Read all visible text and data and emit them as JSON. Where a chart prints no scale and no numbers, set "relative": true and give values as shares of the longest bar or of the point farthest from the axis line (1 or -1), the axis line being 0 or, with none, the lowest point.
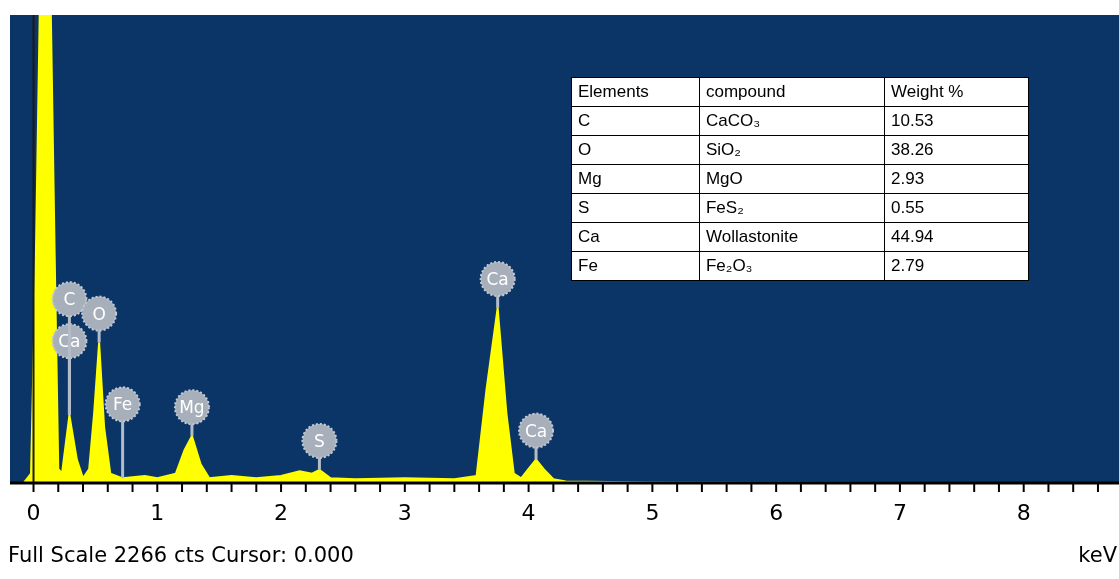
{
  "chart_data": [
    {
      "type": "area",
      "xlabel": "keV",
      "relative": true,
      "xlim": [
        -0.19,
        8.77
      ],
      "xticks": [
        0,
        {
          "value": 0.2,
          "label": null
        },
        {
          "value": 0.4,
          "label": null
        },
        {
          "value": 0.6,
          "label": null
        },
        {
          "value": 0.8,
          "label": null
        },
        1,
        {
          "value": 1.2,
          "label": null
        },
        {
          "value": 1.4,
          "label": null
        },
        {
          "value": 1.6,
          "label": null
        },
        {
          "value": 1.8,
          "label": null
        },
        2,
        {
          "value": 2.2,
          "label": null
        },
        {
          "value": 2.4,
          "label": null
        },
        {
          "value": 2.6,
          "label": null
        },
        {
          "value": 2.8,
          "label": null
        },
        3,
        {
          "value": 3.2,
          "label": null
        },
        {
          "value": 3.4,
          "label": null
        },
        {
          "value": 3.6,
          "label": null
        },
        {
          "value": 3.8,
          "label": null
        },
        4,
        {
          "value": 4.2,
          "label": null
        },
        {
          "value": 4.4,
          "label": null
        },
        {
          "value": 4.6,
          "label": null
        },
        {
          "value": 4.8,
          "label": null
        },
        5,
        {
          "value": 5.2,
          "label": null
        },
        {
          "value": 5.4,
          "label": null
        },
        {
          "value": 5.6,
          "label": null
        },
        {
          "value": 5.8,
          "label": null
        },
        6,
        {
          "value": 6.2,
          "label": null
        },
        {
          "value": 6.4,
          "label": null
        },
        {
          "value": 6.6,
          "label": null
        },
        {
          "value": 6.8,
          "label": null
        },
        7,
        {
          "value": 7.2,
          "label": null
        },
        {
          "value": 7.4,
          "label": null
        },
        {
          "value": 7.6,
          "label": null
        },
        {
          "value": 7.8,
          "label": null
        },
        8,
        {
          "value": 8.2,
          "label": null
        },
        {
          "value": 8.4,
          "label": null
        },
        {
          "value": 8.6,
          "label": null
        }
      ],
      "series": [
        {
          "color": "#ffff00",
          "x": [
            -0.08,
            -0.02,
            0.02,
            0.05,
            0.14,
            0.17,
            0.2,
            0.23,
            0.29,
            0.35,
            0.4,
            0.45,
            0.49,
            0.53,
            0.57,
            0.62,
            0.72,
            0.9,
            1.0,
            1.15,
            1.22,
            1.28,
            1.35,
            1.42,
            1.6,
            1.8,
            2.0,
            2.15,
            2.25,
            2.31,
            2.4,
            2.6,
            3.0,
            3.4,
            3.58,
            3.66,
            3.75,
            3.82,
            3.88,
            3.94,
            4.0,
            4.06,
            4.12,
            4.2,
            4.3,
            5.0,
            8.77
          ],
          "values": [
            0,
            0.02,
            0.5,
            1,
            1,
            0.5,
            0.03,
            0.02,
            0.145,
            0.05,
            0.01,
            0.03,
            0.15,
            0.3,
            0.12,
            0.02,
            0.01,
            0.015,
            0.01,
            0.02,
            0.07,
            0.1,
            0.04,
            0.01,
            0.015,
            0.01,
            0.015,
            0.025,
            0.02,
            0.028,
            0.01,
            0.008,
            0.01,
            0.008,
            0.015,
            0.2,
            0.374,
            0.15,
            0.02,
            0.01,
            0.03,
            0.05,
            0.03,
            0.008,
            0.003,
            0.001,
            0
          ]
        }
      ],
      "ref_lines": [
        {
          "axis": "x",
          "value": 0,
          "color": "#1a1a1a"
        }
      ],
      "annotations": [
        {
          "text": "Ca",
          "x": 0.29,
          "y": 0.145
        },
        {
          "text": "C",
          "x": 0.29,
          "y": 0.145
        },
        {
          "text": "O",
          "x": 0.53,
          "y": 0.3
        },
        {
          "text": "Fe",
          "x": 0.72,
          "y": 0.01
        },
        {
          "text": "Mg",
          "x": 1.28,
          "y": 0.1
        },
        {
          "text": "S",
          "x": 2.31,
          "y": 0.028
        },
        {
          "text": "Ca",
          "x": 3.75,
          "y": 0.374
        },
        {
          "text": "Ca",
          "x": 4.06,
          "y": 0.05
        },
        "Full Scale 2266 cts Cursor: 0.000"
      ]
    },
    {
      "type": "other",
      "categories": [
        "Elements",
        "compound",
        "Weight %"
      ],
      "annotations": [
        "C",
        "CaCO₃",
        "10.53",
        "O",
        "SiO₂",
        "38.26",
        "Mg",
        "MgO",
        "2.93",
        "S",
        "FeS₂",
        "0.55",
        "Ca",
        "Wollastonite",
        "44.94",
        "Fe",
        "Fe₂O₃",
        "2.79"
      ]
    }
  ]
}
